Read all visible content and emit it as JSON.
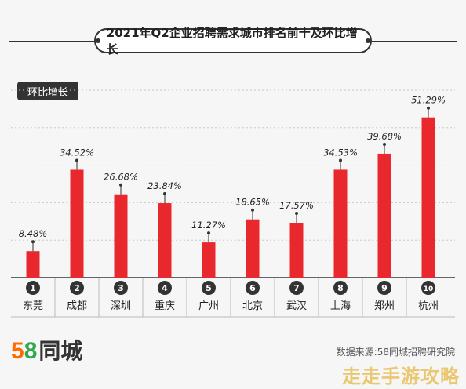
{
  "title": "2021年Q2企业招聘需求城市排名前十及环比增长",
  "y_badge": "环比增长",
  "colors": {
    "bar": "#e8282c",
    "badge_bg": "#333333",
    "axis": "#333333"
  },
  "chart_data": {
    "type": "bar",
    "categories": [
      "东莞",
      "成都",
      "深圳",
      "重庆",
      "广州",
      "北京",
      "武汉",
      "上海",
      "郑州",
      "杭州"
    ],
    "ranks": [
      "1",
      "2",
      "3",
      "4",
      "5",
      "6",
      "7",
      "8",
      "9",
      "10"
    ],
    "values": [
      8.48,
      34.52,
      26.68,
      23.84,
      11.27,
      18.65,
      17.57,
      34.53,
      39.68,
      51.29
    ],
    "data_labels": [
      "8.48%",
      "34.52%",
      "26.68%",
      "23.84%",
      "11.27%",
      "18.65%",
      "17.57%",
      "34.53%",
      "39.68%",
      "51.29%"
    ],
    "ylabel": "环比增长",
    "ylim": [
      0,
      60
    ],
    "grid": true
  },
  "footer": {
    "logo_5": "5",
    "logo_8": "8",
    "logo_text": "同城",
    "source": "数据来源:58同城招聘研究院",
    "watermark": "走走手游攻略"
  }
}
